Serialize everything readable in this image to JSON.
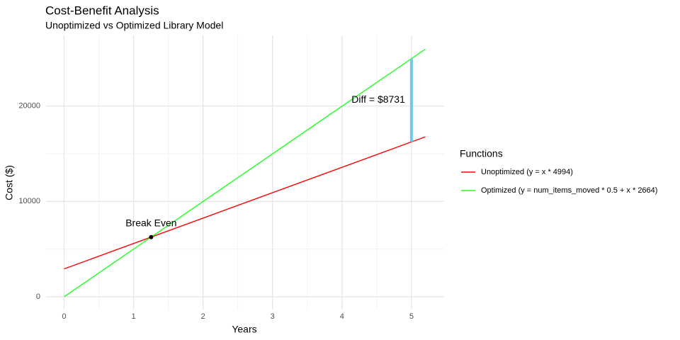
{
  "chart_data": {
    "type": "line",
    "title": "Cost-Benefit Analysis",
    "subtitle": "Unoptimized vs Optimized Library Model",
    "xlabel": "Years",
    "ylabel": "Cost ($)",
    "x": [
      0,
      5.2
    ],
    "series": [
      {
        "name": "Unoptimized (y = x * 4994)",
        "color": "#ff0000",
        "values": [
          2919,
          16772
        ]
      },
      {
        "name": "Optimized (y = num_items_moved * 0.5 + x * 2664)",
        "color": "#22ff22",
        "values": [
          0,
          25969
        ]
      }
    ],
    "xlim": [
      -0.26,
      5.47
    ],
    "ylim": [
      -1340,
      27400
    ],
    "xticks": [
      0,
      1,
      2,
      3,
      4,
      5
    ],
    "yticks": [
      0,
      10000,
      20000
    ],
    "grid": true,
    "legend_title": "Functions",
    "legend_position": "right",
    "annotations": [
      {
        "label": "Break Even",
        "x": 1.2528,
        "y": 6257,
        "color": "#000000"
      },
      {
        "label": "Diff = $8731",
        "x": 5,
        "y_low": 16239,
        "y_high": 24970,
        "color": "#74c7e8"
      }
    ]
  }
}
